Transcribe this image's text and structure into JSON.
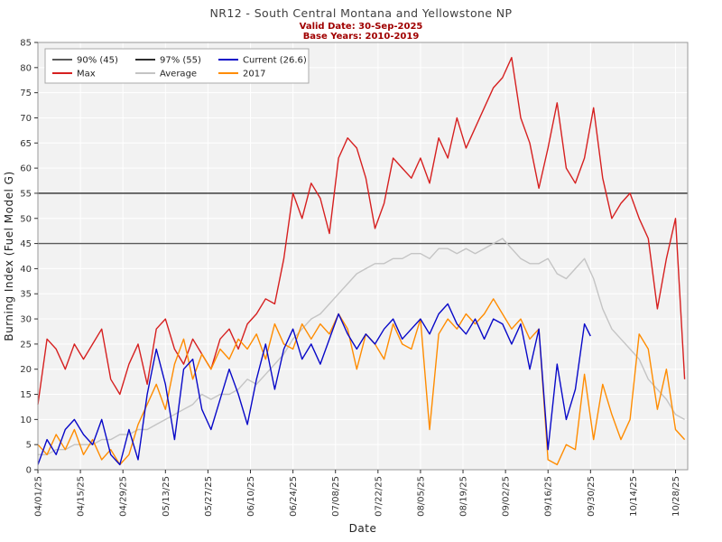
{
  "chart_data": {
    "type": "line",
    "title": "NR12 - South Central Montana and Yellowstone NP",
    "subtitle_valid_date": "Valid Date: 30-Sep-2025",
    "subtitle_base_years": "Base Years: 2010-2019",
    "subtitle_color": "#a00000",
    "xlabel": "Date",
    "ylabel": "Burning Index (Fuel Model G)",
    "ylim": [
      0,
      85
    ],
    "grid": true,
    "plot_background": "#f2f2f2",
    "legend_position": "upper-left",
    "y_ticks": [
      0,
      5,
      10,
      15,
      20,
      25,
      30,
      35,
      40,
      45,
      50,
      55,
      60,
      65,
      70,
      75,
      80,
      85
    ],
    "x_ticks": [
      {
        "day": 0,
        "label": "04/01/25"
      },
      {
        "day": 14,
        "label": "04/15/25"
      },
      {
        "day": 28,
        "label": "04/29/25"
      },
      {
        "day": 42,
        "label": "05/13/25"
      },
      {
        "day": 56,
        "label": "05/27/25"
      },
      {
        "day": 70,
        "label": "06/10/25"
      },
      {
        "day": 84,
        "label": "06/24/25"
      },
      {
        "day": 98,
        "label": "07/08/25"
      },
      {
        "day": 112,
        "label": "07/22/25"
      },
      {
        "day": 126,
        "label": "08/05/25"
      },
      {
        "day": 140,
        "label": "08/19/25"
      },
      {
        "day": 154,
        "label": "09/02/25"
      },
      {
        "day": 168,
        "label": "09/16/25"
      },
      {
        "day": 182,
        "label": "09/30/25"
      },
      {
        "day": 196,
        "label": "10/14/25"
      },
      {
        "day": 210,
        "label": "10/28/25"
      }
    ],
    "thresholds": [
      {
        "label": "90% (45)",
        "value": 45,
        "color": "#5a5a5a"
      },
      {
        "label": "97% (55)",
        "value": 55,
        "color": "#2e2e2e"
      }
    ],
    "legend": [
      {
        "label": "90% (45)",
        "color": "#5a5a5a",
        "col": 0,
        "row": 0
      },
      {
        "label": "97% (55)",
        "color": "#2e2e2e",
        "col": 1,
        "row": 0
      },
      {
        "label": "Current (26.6)",
        "color": "#0808c8",
        "col": 2,
        "row": 0
      },
      {
        "label": "Max",
        "color": "#d62020",
        "col": 0,
        "row": 1
      },
      {
        "label": "Average",
        "color": "#c4c4c4",
        "col": 1,
        "row": 1
      },
      {
        "label": "2017",
        "color": "#ff8c00",
        "col": 2,
        "row": 1
      }
    ],
    "series": [
      {
        "name": "Average",
        "color": "#c4c4c4",
        "x": [
          0,
          3,
          6,
          9,
          12,
          15,
          18,
          21,
          24,
          27,
          30,
          33,
          36,
          39,
          42,
          45,
          48,
          51,
          54,
          57,
          60,
          63,
          66,
          69,
          72,
          75,
          78,
          81,
          84,
          87,
          90,
          93,
          96,
          99,
          102,
          105,
          108,
          111,
          114,
          117,
          120,
          123,
          126,
          129,
          132,
          135,
          138,
          141,
          144,
          147,
          150,
          153,
          156,
          159,
          162,
          165,
          168,
          171,
          174,
          177,
          180,
          183,
          186,
          189,
          192,
          195,
          198,
          201,
          204,
          207,
          210,
          213
        ],
        "values": [
          3,
          3,
          4,
          4,
          5,
          5,
          5,
          6,
          6,
          7,
          7,
          8,
          8,
          9,
          10,
          11,
          12,
          13,
          15,
          14,
          15,
          15,
          16,
          18,
          17,
          19,
          21,
          23,
          26,
          28,
          30,
          31,
          33,
          35,
          37,
          39,
          40,
          41,
          41,
          42,
          42,
          43,
          43,
          42,
          44,
          44,
          43,
          44,
          43,
          44,
          45,
          46,
          44,
          42,
          41,
          41,
          42,
          39,
          38,
          40,
          42,
          38,
          32,
          28,
          26,
          24,
          22,
          18,
          16,
          14,
          11,
          10
        ]
      },
      {
        "name": "Max",
        "color": "#d62020",
        "x": [
          0,
          3,
          6,
          9,
          12,
          15,
          18,
          21,
          24,
          27,
          30,
          33,
          36,
          39,
          42,
          45,
          48,
          51,
          54,
          57,
          60,
          63,
          66,
          69,
          72,
          75,
          78,
          81,
          84,
          87,
          90,
          93,
          96,
          99,
          102,
          105,
          108,
          111,
          114,
          117,
          120,
          123,
          126,
          129,
          132,
          135,
          138,
          141,
          144,
          147,
          150,
          153,
          156,
          159,
          162,
          165,
          168,
          171,
          174,
          177,
          180,
          183,
          186,
          189,
          192,
          195,
          198,
          201,
          204,
          207,
          210,
          213
        ],
        "values": [
          13,
          26,
          24,
          20,
          25,
          22,
          25,
          28,
          18,
          15,
          21,
          25,
          17,
          28,
          30,
          24,
          21,
          26,
          23,
          20,
          26,
          28,
          24,
          29,
          31,
          34,
          33,
          42,
          55,
          50,
          57,
          54,
          47,
          62,
          66,
          64,
          58,
          48,
          53,
          62,
          60,
          58,
          62,
          57,
          66,
          62,
          70,
          64,
          68,
          72,
          76,
          78,
          82,
          70,
          65,
          56,
          64,
          73,
          60,
          57,
          62,
          72,
          58,
          50,
          53,
          55,
          50,
          46,
          32,
          42,
          50,
          18
        ]
      },
      {
        "name": "2017",
        "color": "#ff8c00",
        "x": [
          0,
          3,
          6,
          9,
          12,
          15,
          18,
          21,
          24,
          27,
          30,
          33,
          36,
          39,
          42,
          45,
          48,
          51,
          54,
          57,
          60,
          63,
          66,
          69,
          72,
          75,
          78,
          81,
          84,
          87,
          90,
          93,
          96,
          99,
          102,
          105,
          108,
          111,
          114,
          117,
          120,
          123,
          126,
          129,
          132,
          135,
          138,
          141,
          144,
          147,
          150,
          153,
          156,
          159,
          162,
          165,
          168,
          171,
          174,
          177,
          180,
          183,
          186,
          189,
          192,
          195,
          198,
          201,
          204,
          207,
          210,
          213
        ],
        "values": [
          5,
          3,
          7,
          4,
          8,
          3,
          6,
          2,
          4,
          1,
          3,
          9,
          13,
          17,
          12,
          21,
          26,
          18,
          23,
          20,
          24,
          22,
          26,
          24,
          27,
          22,
          29,
          25,
          24,
          29,
          26,
          29,
          27,
          31,
          28,
          20,
          27,
          25,
          22,
          29,
          25,
          24,
          30,
          8,
          27,
          30,
          28,
          31,
          29,
          31,
          34,
          31,
          28,
          30,
          26,
          28,
          2,
          1,
          5,
          4,
          19,
          6,
          17,
          11,
          6,
          10,
          27,
          24,
          12,
          20,
          8,
          6
        ]
      },
      {
        "name": "Current (26.6)",
        "color": "#0808c8",
        "x": [
          0,
          3,
          6,
          9,
          12,
          15,
          18,
          21,
          24,
          27,
          30,
          33,
          36,
          39,
          42,
          45,
          48,
          51,
          54,
          57,
          60,
          63,
          66,
          69,
          72,
          75,
          78,
          81,
          84,
          87,
          90,
          93,
          96,
          99,
          102,
          105,
          108,
          111,
          114,
          117,
          120,
          123,
          126,
          129,
          132,
          135,
          138,
          141,
          144,
          147,
          150,
          153,
          156,
          159,
          162,
          165,
          168,
          171,
          174,
          177,
          180,
          182
        ],
        "values": [
          1,
          6,
          3,
          8,
          10,
          7,
          5,
          10,
          3,
          1,
          8,
          2,
          15,
          24,
          17,
          6,
          20,
          22,
          12,
          8,
          14,
          20,
          15,
          9,
          18,
          25,
          16,
          24,
          28,
          22,
          25,
          21,
          26,
          31,
          27,
          24,
          27,
          25,
          28,
          30,
          26,
          28,
          30,
          27,
          31,
          33,
          29,
          27,
          30,
          26,
          30,
          29,
          25,
          29,
          20,
          28,
          4,
          21,
          10,
          16,
          29,
          26.6
        ]
      }
    ]
  }
}
